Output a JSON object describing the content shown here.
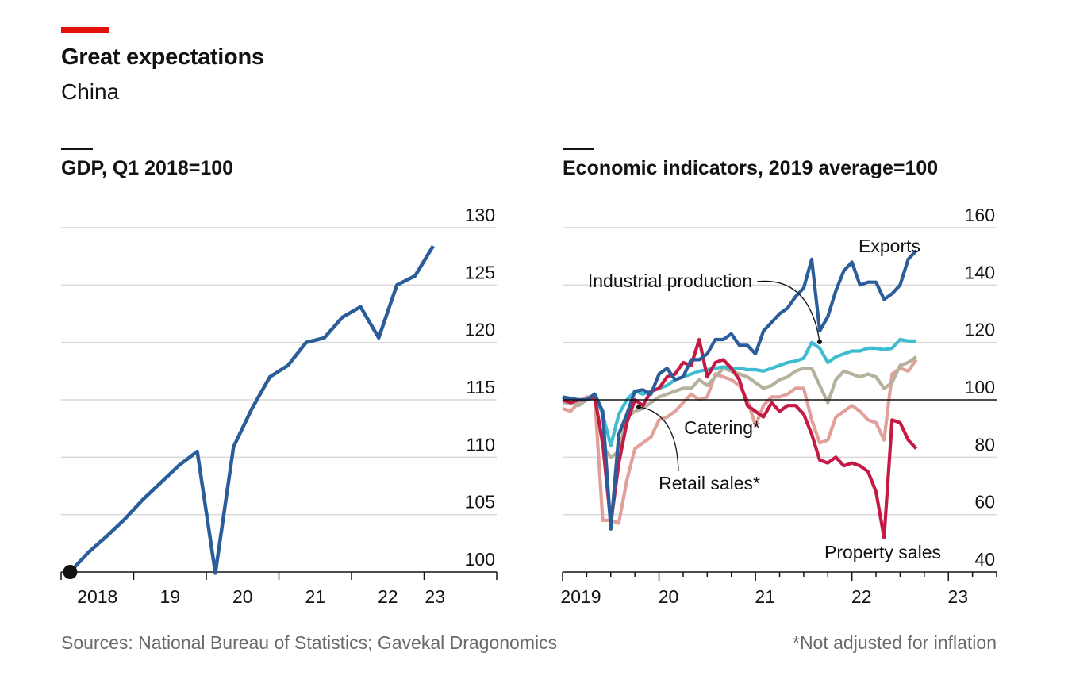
{
  "header": {
    "title": "Great expectations",
    "subtitle": "China"
  },
  "footer": {
    "source": "Sources: National Bureau of Statistics; Gavekal Dragonomics",
    "note": "*Not adjusted for inflation"
  },
  "colors": {
    "accent_red": "#e3120b",
    "gdp": "#2a5d9a",
    "exports": "#2a5d9a",
    "industrial_production": "#3fbdd0",
    "catering": "#b5b19c",
    "retail_sales": "#e2a09b",
    "property_sales": "#c41a45",
    "grid": "#d9d9d9",
    "text": "#121212",
    "muted": "#6a6a6a"
  },
  "chart_data": [
    {
      "type": "line",
      "title": "GDP, Q1 2018=100",
      "ylim": [
        100,
        130
      ],
      "yticks": [
        100,
        105,
        110,
        115,
        120,
        125,
        130
      ],
      "xlim": [
        2018.0,
        2024.0
      ],
      "xticks": [
        {
          "label": "2018",
          "x": 2018.5
        },
        {
          "label": "19",
          "x": 2019.5
        },
        {
          "label": "20",
          "x": 2020.5
        },
        {
          "label": "21",
          "x": 2021.5
        },
        {
          "label": "22",
          "x": 2022.5
        },
        {
          "label": "23",
          "x": 2023.15
        }
      ],
      "grid": true,
      "series": [
        {
          "x": [
            2018.125,
            2018.375,
            2018.625,
            2018.875,
            2019.125,
            2019.375,
            2019.625,
            2019.875,
            2020.125,
            2020.375,
            2020.625,
            2020.875,
            2021.125,
            2021.375,
            2021.625,
            2021.875,
            2022.125,
            2022.375,
            2022.625,
            2022.875,
            2023.125
          ],
          "y": [
            100.0,
            101.7,
            103.1,
            104.6,
            106.3,
            107.8,
            109.3,
            110.5,
            99.9,
            110.9,
            114.2,
            117.0,
            118.0,
            120.0,
            120.4,
            122.2,
            123.1,
            120.4,
            125.0,
            125.8,
            128.4
          ]
        }
      ],
      "start_marker": {
        "x": 2018.125,
        "y": 100
      }
    },
    {
      "type": "line",
      "title": "Economic indicators, 2019 average=100",
      "ylim": [
        40,
        160
      ],
      "yticks": [
        40,
        60,
        80,
        100,
        120,
        140,
        160
      ],
      "reference_line": 100,
      "grid": true,
      "xlim": [
        2019.0,
        2023.5
      ],
      "xticks": [
        {
          "label": "2019",
          "x": 2019.0
        },
        {
          "label": "20",
          "x": 2020.0
        },
        {
          "label": "21",
          "x": 2021.0
        },
        {
          "label": "22",
          "x": 2022.0
        },
        {
          "label": "23",
          "x": 2023.0
        }
      ],
      "x_start": 2019.0,
      "x_step": 0.08333,
      "series": [
        {
          "name": "Exports",
          "color_key": "exports",
          "values": [
            101,
            100.5,
            100,
            100,
            102,
            96,
            55,
            88,
            95,
            103,
            103.5,
            102,
            109,
            111,
            107,
            108,
            114,
            114,
            116,
            121,
            121,
            123,
            119,
            119,
            116,
            124,
            127,
            130,
            132,
            136,
            139,
            149,
            124,
            129,
            138,
            145,
            148,
            140,
            141,
            141,
            135,
            137,
            140,
            149,
            152
          ]
        },
        {
          "name": "Industrial production",
          "color_key": "industrial_production",
          "values": [
            101,
            99,
            100,
            100,
            102,
            95,
            84,
            95,
            100,
            103,
            102,
            103,
            104,
            105,
            107,
            108,
            109,
            110,
            110.5,
            111,
            111.5,
            111,
            111,
            110.5,
            110.5,
            110,
            111,
            112,
            113,
            113.5,
            114.5,
            120,
            118,
            113,
            115,
            116,
            117,
            117,
            118,
            118,
            117.5,
            118,
            121,
            120.5,
            120.5
          ]
        },
        {
          "name": "Catering*",
          "color_key": "catering",
          "values": [
            99,
            99,
            98,
            100,
            101,
            84,
            80,
            82,
            94,
            96,
            97,
            99,
            101,
            102,
            103,
            104,
            104,
            107,
            105,
            108,
            111,
            110,
            109,
            108,
            106,
            104,
            105,
            107,
            108,
            110,
            111,
            111,
            105,
            99,
            107,
            110,
            109,
            108,
            109,
            108,
            104,
            106,
            112,
            113,
            115
          ]
        },
        {
          "name": "Retail sales*",
          "color_key": "retail_sales",
          "values": [
            97,
            96,
            99,
            101,
            101,
            58,
            58,
            57,
            72,
            83,
            85,
            87,
            93,
            94,
            96,
            99,
            102,
            100,
            101,
            109,
            108,
            107,
            105,
            100,
            91,
            98,
            101,
            101,
            102,
            104,
            104,
            93,
            85,
            86,
            94,
            96,
            98,
            96,
            93,
            92,
            86,
            109,
            111,
            110,
            114
          ]
        },
        {
          "name": "Property sales",
          "color_key": "property_sales",
          "values": [
            100,
            99,
            100,
            100,
            101,
            85,
            57,
            78,
            92,
            100,
            98,
            103,
            104,
            108,
            109,
            113,
            112,
            121,
            108,
            113,
            114,
            111,
            107,
            98,
            96,
            94,
            99,
            96,
            98,
            98,
            95,
            88,
            79,
            78,
            80,
            77,
            78,
            77,
            75,
            68,
            52,
            93,
            92,
            86,
            83
          ]
        }
      ],
      "annotations": [
        "Exports",
        "Industrial production",
        "Catering*",
        "Retail sales*",
        "Property sales"
      ]
    }
  ]
}
